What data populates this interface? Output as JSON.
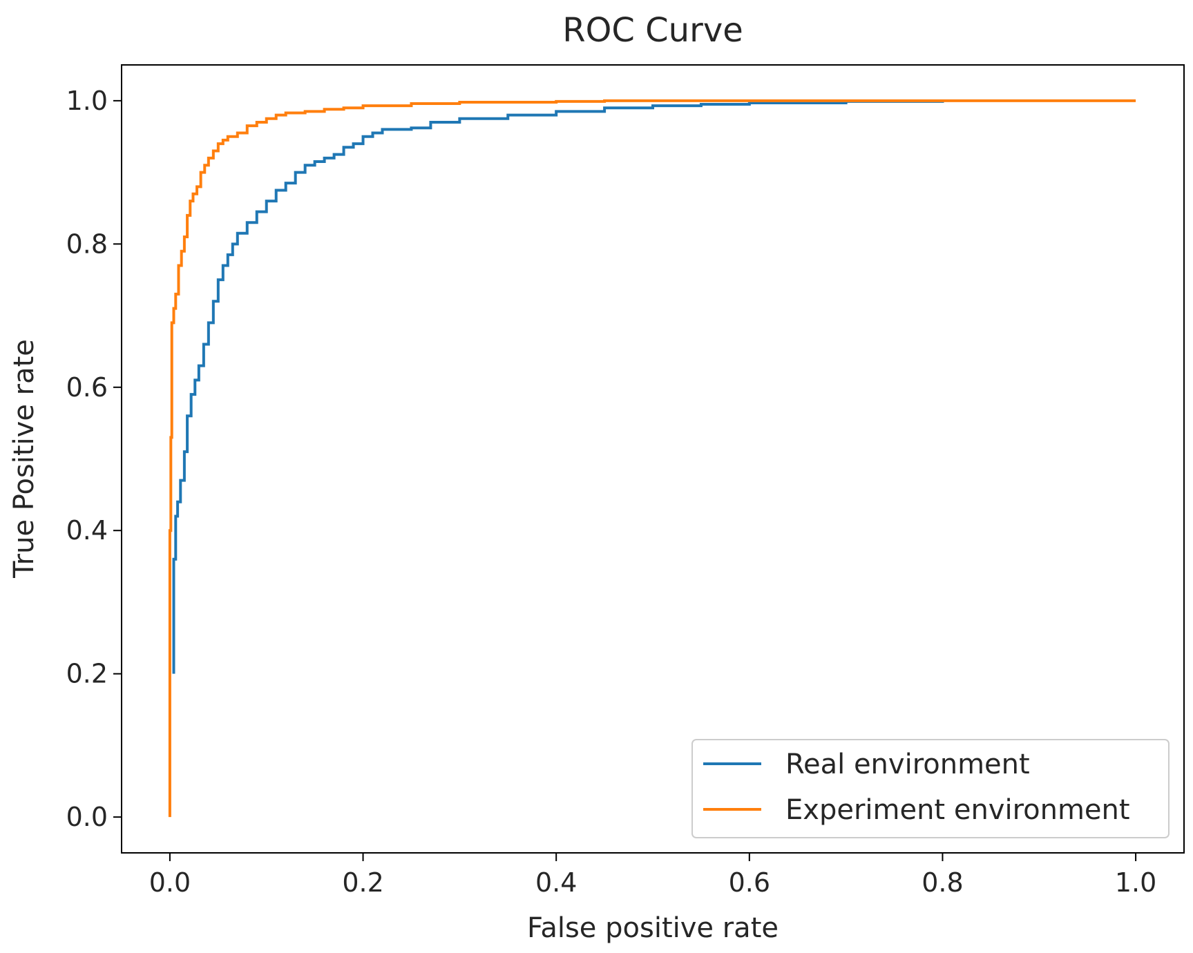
{
  "chart_data": {
    "type": "line",
    "title": "ROC Curve",
    "xlabel": "False positive rate",
    "ylabel": "True Positive rate",
    "xlim": [
      -0.05,
      1.05
    ],
    "ylim": [
      -0.05,
      1.05
    ],
    "x_ticks": [
      0.0,
      0.2,
      0.4,
      0.6,
      0.8,
      1.0
    ],
    "y_ticks": [
      0.0,
      0.2,
      0.4,
      0.6,
      0.8,
      1.0
    ],
    "x_tick_labels": [
      "0.0",
      "0.2",
      "0.4",
      "0.6",
      "0.8",
      "1.0"
    ],
    "y_tick_labels": [
      "0.0",
      "0.2",
      "0.4",
      "0.6",
      "0.8",
      "1.0"
    ],
    "grid": false,
    "legend": {
      "placement": "lower-right"
    },
    "series": [
      {
        "name": "Real environment",
        "color": "#1f77b4",
        "x": [
          0.004,
          0.004,
          0.006,
          0.008,
          0.011,
          0.015,
          0.018,
          0.022,
          0.026,
          0.03,
          0.035,
          0.04,
          0.045,
          0.05,
          0.055,
          0.06,
          0.065,
          0.07,
          0.08,
          0.09,
          0.1,
          0.11,
          0.12,
          0.13,
          0.14,
          0.15,
          0.16,
          0.17,
          0.18,
          0.19,
          0.2,
          0.21,
          0.22,
          0.25,
          0.27,
          0.3,
          0.35,
          0.4,
          0.45,
          0.5,
          0.55,
          0.6,
          0.7,
          0.8
        ],
        "y": [
          0.2,
          0.36,
          0.42,
          0.44,
          0.47,
          0.51,
          0.56,
          0.59,
          0.61,
          0.63,
          0.66,
          0.69,
          0.72,
          0.75,
          0.77,
          0.785,
          0.8,
          0.815,
          0.83,
          0.845,
          0.86,
          0.875,
          0.885,
          0.9,
          0.91,
          0.915,
          0.92,
          0.925,
          0.935,
          0.94,
          0.95,
          0.955,
          0.96,
          0.962,
          0.97,
          0.975,
          0.98,
          0.985,
          0.99,
          0.993,
          0.995,
          0.997,
          0.999,
          1.0
        ]
      },
      {
        "name": "Experiment environment",
        "color": "#ff7f0e",
        "x": [
          0.0,
          0.0,
          0.001,
          0.002,
          0.004,
          0.006,
          0.009,
          0.012,
          0.015,
          0.018,
          0.021,
          0.024,
          0.028,
          0.032,
          0.036,
          0.04,
          0.045,
          0.05,
          0.055,
          0.06,
          0.07,
          0.08,
          0.09,
          0.1,
          0.11,
          0.12,
          0.14,
          0.16,
          0.18,
          0.2,
          0.25,
          0.3,
          0.4,
          0.45,
          0.6,
          0.8,
          1.0
        ],
        "y": [
          0.0,
          0.4,
          0.53,
          0.69,
          0.71,
          0.73,
          0.77,
          0.79,
          0.81,
          0.84,
          0.86,
          0.87,
          0.88,
          0.9,
          0.91,
          0.92,
          0.93,
          0.94,
          0.945,
          0.95,
          0.955,
          0.965,
          0.97,
          0.975,
          0.98,
          0.983,
          0.985,
          0.988,
          0.99,
          0.993,
          0.996,
          0.998,
          0.999,
          1.0,
          1.0,
          1.0,
          1.0
        ]
      }
    ]
  }
}
